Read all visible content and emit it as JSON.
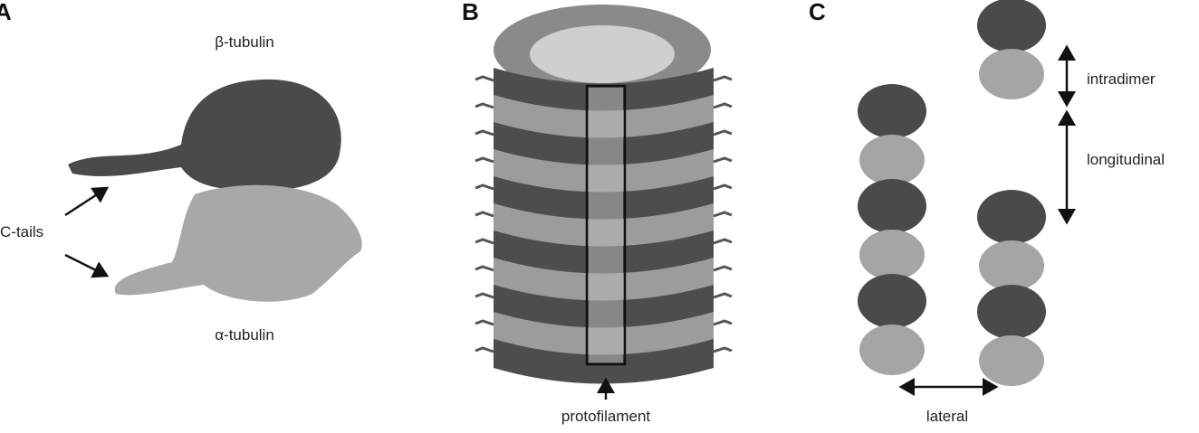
{
  "panels": [
    {
      "label": "A",
      "annotations": [
        "β-tubulin",
        "C-tails",
        "α-tubulin"
      ]
    },
    {
      "label": "B",
      "annotations": [
        "protofilament"
      ]
    },
    {
      "label": "C",
      "annotations": [
        "intradimer",
        "longitudinal",
        "lateral"
      ]
    }
  ]
}
